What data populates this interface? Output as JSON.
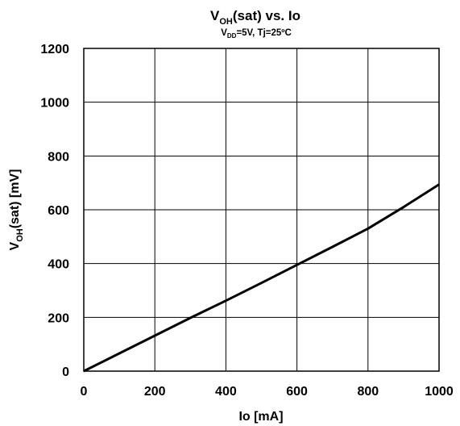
{
  "chart_data": {
    "type": "line",
    "title": {
      "main": "V",
      "main_sub": "OH",
      "main_rest": "(sat) vs. Io"
    },
    "subtitle": {
      "part1": "V",
      "part1_sub": "DD",
      "part2": "=5V, Tj=25ºC"
    },
    "xlabel": "Io [mA]",
    "ylabel": {
      "main": "V",
      "main_sub": "OH",
      "rest": "(sat) [mV]"
    },
    "xlim": [
      0,
      1000
    ],
    "ylim": [
      0,
      1200
    ],
    "xticks": [
      0,
      200,
      400,
      600,
      800,
      1000
    ],
    "yticks": [
      0,
      200,
      400,
      600,
      800,
      1000,
      1200
    ],
    "grid": true,
    "series": [
      {
        "color": "#000000",
        "x": [
          0,
          100,
          200,
          300,
          400,
          500,
          600,
          700,
          800,
          900,
          1000
        ],
        "y": [
          0,
          66,
          132,
          198,
          262,
          328,
          395,
          462,
          530,
          610,
          694
        ]
      }
    ]
  }
}
